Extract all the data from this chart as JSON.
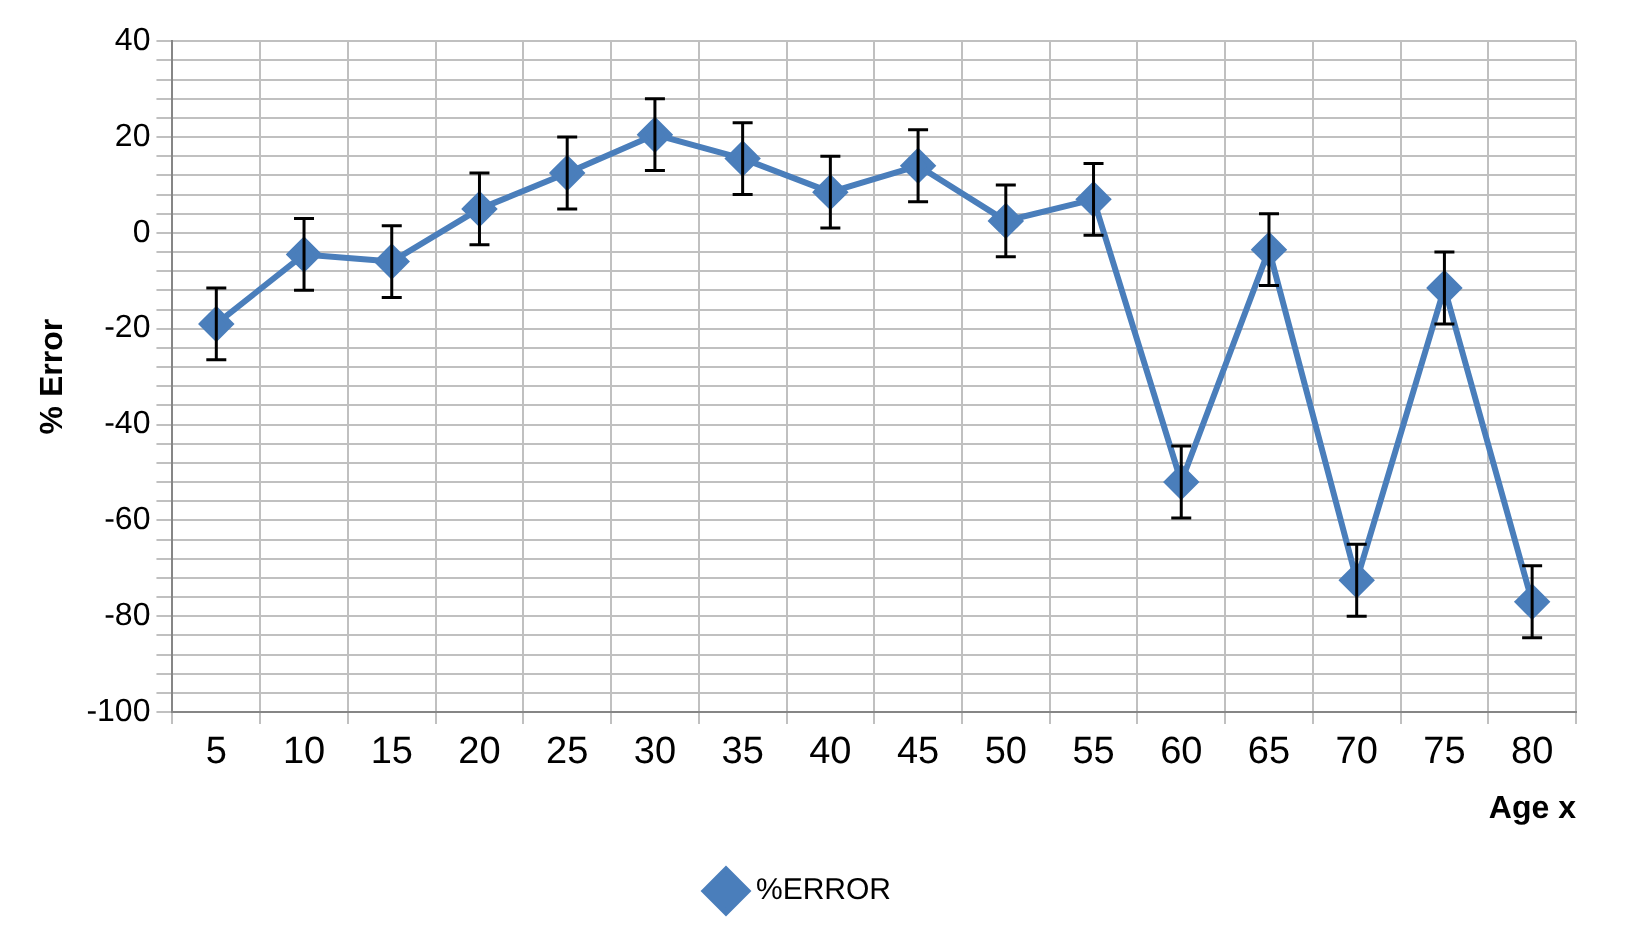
{
  "chart_data": {
    "type": "line",
    "xlabel": "Age x",
    "ylabel": "% Error",
    "categories": [
      "5",
      "10",
      "15",
      "20",
      "25",
      "30",
      "35",
      "40",
      "45",
      "50",
      "55",
      "60",
      "65",
      "70",
      "75",
      "80"
    ],
    "series": [
      {
        "name": "%ERROR",
        "color": "#4a7ebb",
        "values": [
          -19,
          -4.5,
          -6,
          5,
          12.5,
          20.5,
          15.5,
          8.5,
          14,
          2.5,
          7,
          -52,
          -3.5,
          -72.5,
          -11.5,
          -77
        ],
        "errors": [
          7.5,
          7.5,
          7.5,
          7.5,
          7.5,
          7.5,
          7.5,
          7.5,
          7.5,
          7.5,
          7.5,
          7.5,
          7.5,
          7.5,
          7.5,
          7.5
        ]
      }
    ],
    "ylim": [
      -100,
      40
    ],
    "yticks": [
      -100,
      {
        "value": -96,
        "label": null
      },
      {
        "value": -92,
        "label": null
      },
      {
        "value": -88,
        "label": null
      },
      {
        "value": -84,
        "label": null
      },
      -80,
      {
        "value": -76,
        "label": null
      },
      {
        "value": -72,
        "label": null
      },
      {
        "value": -68,
        "label": null
      },
      {
        "value": -64,
        "label": null
      },
      -60,
      {
        "value": -56,
        "label": null
      },
      {
        "value": -52,
        "label": null
      },
      {
        "value": -48,
        "label": null
      },
      {
        "value": -44,
        "label": null
      },
      -40,
      {
        "value": -36,
        "label": null
      },
      {
        "value": -32,
        "label": null
      },
      {
        "value": -28,
        "label": null
      },
      {
        "value": -24,
        "label": null
      },
      -20,
      {
        "value": -16,
        "label": null
      },
      {
        "value": -12,
        "label": null
      },
      {
        "value": -8,
        "label": null
      },
      {
        "value": -4,
        "label": null
      },
      0,
      {
        "value": 4,
        "label": null
      },
      {
        "value": 8,
        "label": null
      },
      {
        "value": 12,
        "label": null
      },
      {
        "value": 16,
        "label": null
      },
      20,
      {
        "value": 24,
        "label": null
      },
      {
        "value": 28,
        "label": null
      },
      {
        "value": 32,
        "label": null
      },
      {
        "value": 36,
        "label": null
      },
      40
    ],
    "grid": true,
    "legend": "bottom",
    "marker": "diamond",
    "line_style": "solid"
  }
}
